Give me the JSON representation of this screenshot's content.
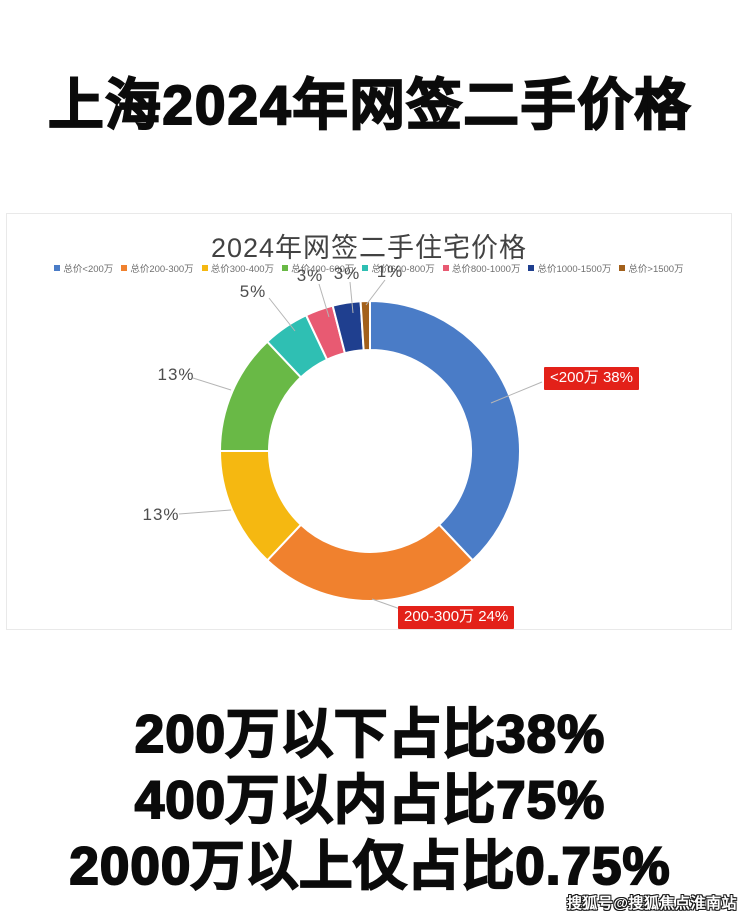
{
  "page": {
    "title": "上海2024年网签二手价格",
    "watermark": "搜狐号@搜狐焦点淮南站",
    "big_text": {
      "line1": "200万以下占比38%",
      "line2": "400万以内占比75%",
      "line3": "2000万以上仅占比0.75%"
    }
  },
  "colors": {
    "callout_bg": "#E32119",
    "pct_label_text": "#4D4D4D",
    "leader_line": "#B5B5B5"
  },
  "chart_data": {
    "type": "pie",
    "subtype": "donut",
    "title": "2024年网签二手住宅价格",
    "legend_position": "top",
    "total": 100,
    "slices": [
      {
        "label": "总价<200万",
        "value": 38,
        "color": "#4A7CC7",
        "pct_label": "38%",
        "callout": "<200万 38%"
      },
      {
        "label": "总价200-300万",
        "value": 24,
        "color": "#F0812E",
        "pct_label": "24%",
        "callout": "200-300万 24%"
      },
      {
        "label": "总价300-400万",
        "value": 13,
        "color": "#F5B811",
        "pct_label": "13%"
      },
      {
        "label": "总价400-600万",
        "value": 13,
        "color": "#69B946",
        "pct_label": "13%"
      },
      {
        "label": "总价600-800万",
        "value": 5,
        "color": "#2FBFB3",
        "pct_label": "5%"
      },
      {
        "label": "总价800-1000万",
        "value": 3,
        "color": "#E85A72",
        "pct_label": "3%"
      },
      {
        "label": "总价1000-1500万",
        "value": 3,
        "color": "#1F3F8F",
        "pct_label": "3%"
      },
      {
        "label": "总价>1500万",
        "value": 1,
        "color": "#A2601B",
        "pct_label": "1%"
      }
    ]
  }
}
